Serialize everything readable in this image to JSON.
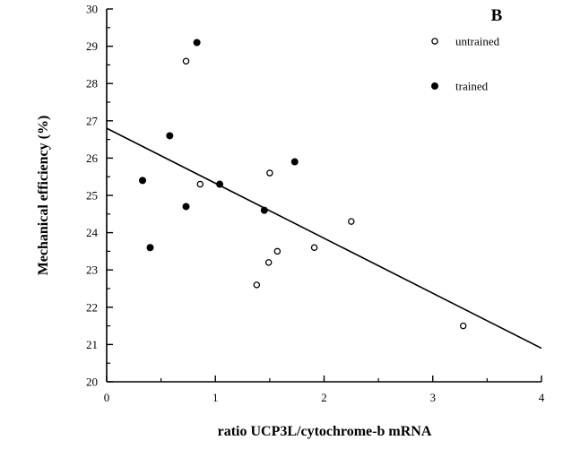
{
  "chart_data": {
    "type": "scatter",
    "panel_label": "B",
    "title": "",
    "xlabel": "ratio  UCP3L/cytochrome-b  mRNA",
    "ylabel": "Mechanical  efficiency  (%)",
    "xlim": [
      0,
      4
    ],
    "ylim": [
      20,
      30
    ],
    "x_ticks": [
      "0",
      "1",
      "2",
      "3",
      "4"
    ],
    "y_ticks": [
      "20",
      "21",
      "22",
      "23",
      "24",
      "25",
      "26",
      "27",
      "28",
      "29",
      "30"
    ],
    "grid": false,
    "legend_position": "top-right",
    "series": [
      {
        "name": "untrained",
        "marker": "open-circle",
        "points": [
          {
            "x": 0.73,
            "y": 28.6
          },
          {
            "x": 0.86,
            "y": 25.3
          },
          {
            "x": 1.5,
            "y": 25.6
          },
          {
            "x": 1.38,
            "y": 22.6
          },
          {
            "x": 1.49,
            "y": 23.2
          },
          {
            "x": 1.57,
            "y": 23.5
          },
          {
            "x": 1.91,
            "y": 23.6
          },
          {
            "x": 2.25,
            "y": 24.3
          },
          {
            "x": 3.28,
            "y": 21.5
          }
        ]
      },
      {
        "name": "trained",
        "marker": "filled-circle",
        "points": [
          {
            "x": 0.83,
            "y": 29.1
          },
          {
            "x": 0.58,
            "y": 26.6
          },
          {
            "x": 0.33,
            "y": 25.4
          },
          {
            "x": 0.4,
            "y": 23.6
          },
          {
            "x": 0.73,
            "y": 24.7
          },
          {
            "x": 1.04,
            "y": 25.3
          },
          {
            "x": 1.45,
            "y": 24.6
          },
          {
            "x": 1.73,
            "y": 25.9
          }
        ]
      }
    ],
    "regression_line": {
      "x": [
        0,
        4
      ],
      "y": [
        26.8,
        20.9
      ]
    }
  },
  "colors": {
    "axis": "#000000",
    "marker_fill": "#000000",
    "background": "#ffffff"
  }
}
